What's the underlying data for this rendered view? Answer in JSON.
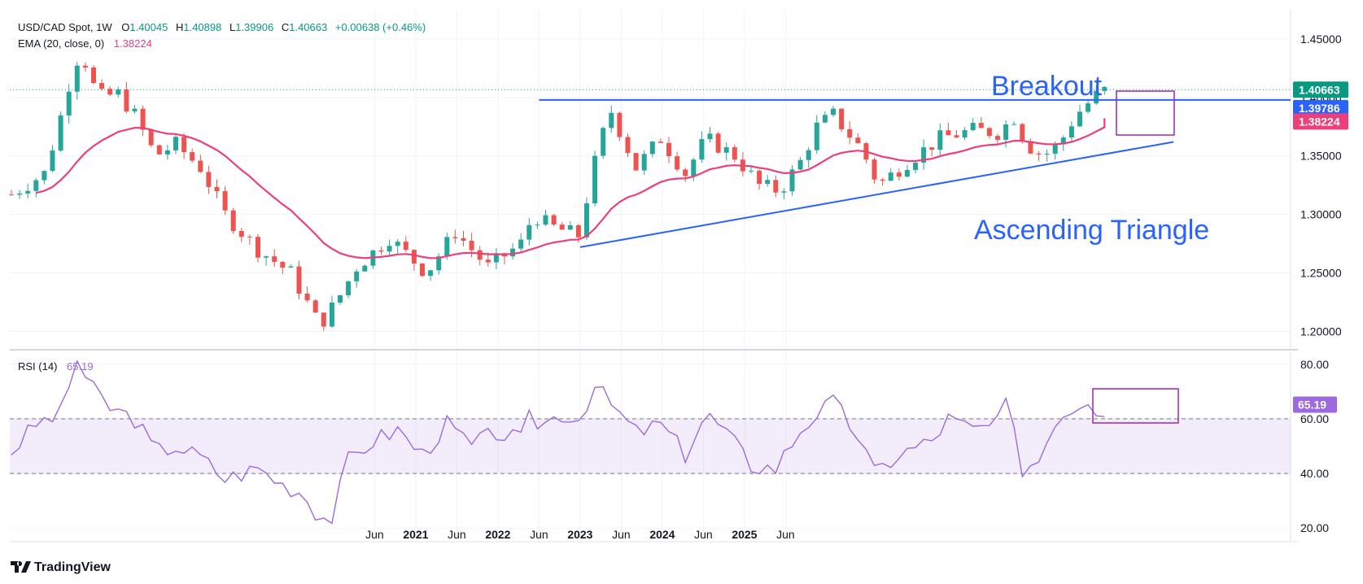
{
  "header": {
    "symbol": "USD/CAD Spot, 1W",
    "open_label": "O",
    "open": "1.40045",
    "high_label": "H",
    "high": "1.40898",
    "low_label": "L",
    "low": "1.39906",
    "close_label": "C",
    "close": "1.40663",
    "change": "+0.00638 (+0.46%)",
    "ema_label": "EMA (20, close, 0)",
    "ema_value": "1.38224",
    "rsi_label": "RSI (14)",
    "rsi_value": "65.19"
  },
  "price_tags": {
    "last": "1.40663",
    "resistance": "1.39786",
    "ema": "1.38224",
    "rsi": "65.19"
  },
  "annotations": {
    "breakout": "Breakout",
    "triangle": "Ascending Triangle"
  },
  "branding": {
    "text": "TradingView"
  },
  "colors": {
    "up": "#26a69a",
    "down": "#ef5350",
    "ema": "#ec407a",
    "rsi": "#9c6ade",
    "annotation": "#2962ff",
    "box": "#9c27b0",
    "last_tag": "#089981",
    "resistance_tag": "#2962ff",
    "ema_tag": "#ec407a"
  },
  "chart_data": [
    {
      "type": "candlestick",
      "name": "USD/CAD Spot 1W",
      "x_ticks": [
        "Jun",
        "2021",
        "Jun",
        "2022",
        "Jun",
        "2023",
        "Jun",
        "2024",
        "Jun",
        "2025",
        "Jun"
      ],
      "x_tick_bold": [
        false,
        true,
        false,
        true,
        false,
        true,
        false,
        true,
        false,
        true,
        false
      ],
      "x_tick_t": [
        4.42,
        4.92,
        5.42,
        5.92,
        6.42,
        6.92,
        7.42,
        7.92,
        8.42,
        8.92,
        9.42
      ],
      "y_ticks": [
        "1.45000",
        "1.40000",
        "1.35000",
        "1.30000",
        "1.25000",
        "1.20000"
      ],
      "ylim": [
        1.185,
        1.475
      ],
      "waypoints": [
        [
          0,
          1.317
        ],
        [
          0.4,
          1.335
        ],
        [
          0.55,
          1.37
        ],
        [
          0.75,
          1.425
        ],
        [
          0.85,
          1.44
        ],
        [
          1.05,
          1.4
        ],
        [
          1.3,
          1.403
        ],
        [
          1.5,
          1.385
        ],
        [
          1.75,
          1.35
        ],
        [
          2.0,
          1.36
        ],
        [
          2.3,
          1.34
        ],
        [
          2.6,
          1.3
        ],
        [
          3.0,
          1.27
        ],
        [
          3.4,
          1.25
        ],
        [
          3.75,
          1.205
        ],
        [
          3.95,
          1.225
        ],
        [
          4.2,
          1.255
        ],
        [
          4.6,
          1.28
        ],
        [
          5.05,
          1.25
        ],
        [
          5.4,
          1.285
        ],
        [
          5.8,
          1.255
        ],
        [
          6.2,
          1.275
        ],
        [
          6.35,
          1.3
        ],
        [
          6.55,
          1.29
        ],
        [
          6.9,
          1.282
        ],
        [
          7.15,
          1.36
        ],
        [
          7.3,
          1.388
        ],
        [
          7.6,
          1.34
        ],
        [
          7.9,
          1.365
        ],
        [
          8.2,
          1.335
        ],
        [
          8.45,
          1.365
        ],
        [
          8.8,
          1.35
        ],
        [
          9.1,
          1.325
        ],
        [
          9.35,
          1.32
        ],
        [
          9.6,
          1.345
        ],
        [
          9.8,
          1.375
        ],
        [
          10.0,
          1.385
        ],
        [
          10.35,
          1.355
        ],
        [
          10.55,
          1.325
        ],
        [
          10.9,
          1.345
        ],
        [
          11.3,
          1.365
        ],
        [
          11.7,
          1.372
        ],
        [
          12.0,
          1.37
        ],
        [
          12.2,
          1.383
        ],
        [
          12.35,
          1.36
        ],
        [
          12.55,
          1.35
        ],
        [
          12.75,
          1.36
        ],
        [
          12.95,
          1.385
        ],
        [
          13.1,
          1.395
        ],
        [
          13.25,
          1.405
        ],
        [
          13.35,
          1.40663
        ]
      ],
      "ema": {
        "period": 20,
        "last": 1.38224
      },
      "resistance": {
        "value": 1.39786,
        "t_start": 6.42
      },
      "support": {
        "t_start": 6.92,
        "v_start": 1.272,
        "t_end": 14.14,
        "v_end": 1.362
      },
      "last_close": 1.40663
    },
    {
      "type": "line",
      "name": "RSI (14)",
      "y_ticks": [
        "80.00",
        "60.00",
        "40.00",
        "20.00"
      ],
      "ylim": [
        15,
        85
      ],
      "band": [
        40,
        60
      ],
      "waypoints": [
        [
          0,
          48
        ],
        [
          0.3,
          58
        ],
        [
          0.6,
          62
        ],
        [
          0.8,
          82
        ],
        [
          0.95,
          72
        ],
        [
          1.2,
          64
        ],
        [
          1.5,
          60
        ],
        [
          1.75,
          48
        ],
        [
          2.0,
          50
        ],
        [
          2.3,
          46
        ],
        [
          2.6,
          38
        ],
        [
          3.0,
          42
        ],
        [
          3.3,
          36
        ],
        [
          3.55,
          33
        ],
        [
          3.75,
          24
        ],
        [
          3.9,
          24
        ],
        [
          4.1,
          45
        ],
        [
          4.4,
          52
        ],
        [
          4.7,
          56
        ],
        [
          5.0,
          47
        ],
        [
          5.3,
          58
        ],
        [
          5.6,
          50
        ],
        [
          5.9,
          55
        ],
        [
          6.2,
          52
        ],
        [
          6.3,
          60
        ],
        [
          6.45,
          58
        ],
        [
          6.7,
          62
        ],
        [
          6.9,
          60
        ],
        [
          7.1,
          72
        ],
        [
          7.3,
          65
        ],
        [
          7.6,
          55
        ],
        [
          7.9,
          58
        ],
        [
          8.2,
          47
        ],
        [
          8.45,
          62
        ],
        [
          8.7,
          55
        ],
        [
          9.0,
          43
        ],
        [
          9.3,
          42
        ],
        [
          9.6,
          56
        ],
        [
          9.8,
          62
        ],
        [
          10.0,
          66
        ],
        [
          10.3,
          54
        ],
        [
          10.5,
          40
        ],
        [
          10.8,
          47
        ],
        [
          11.2,
          52
        ],
        [
          11.4,
          60
        ],
        [
          11.7,
          56
        ],
        [
          12.0,
          58
        ],
        [
          12.1,
          66
        ],
        [
          12.3,
          42
        ],
        [
          12.5,
          45
        ],
        [
          12.7,
          60
        ],
        [
          12.85,
          63
        ],
        [
          13.0,
          66
        ],
        [
          13.1,
          68
        ],
        [
          13.25,
          62
        ],
        [
          13.35,
          65.19
        ]
      ],
      "last": 65.19
    }
  ]
}
